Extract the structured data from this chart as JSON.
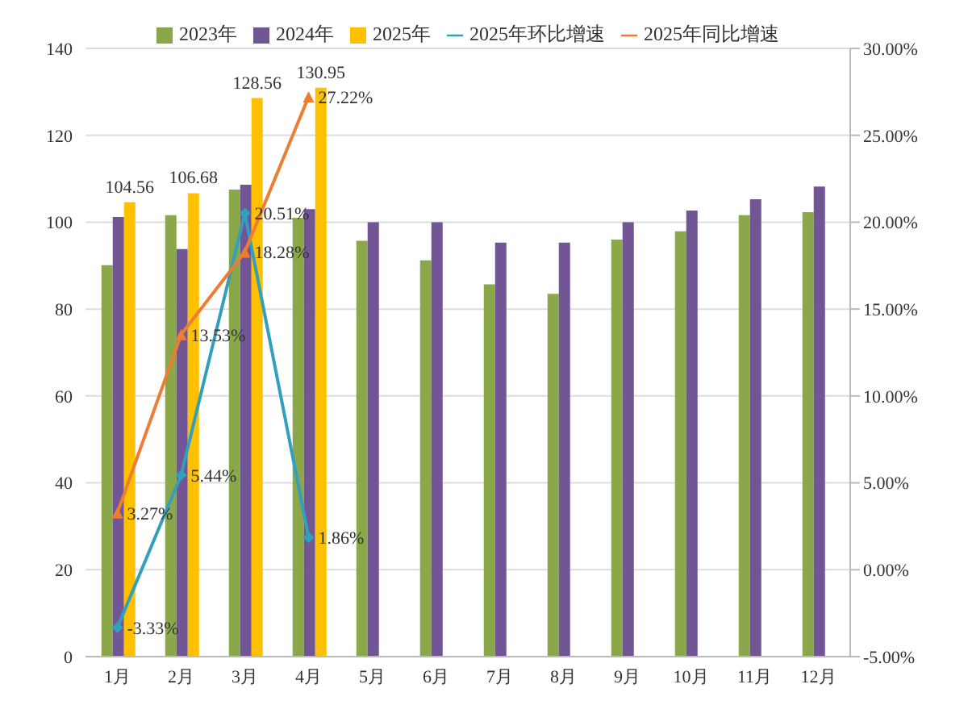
{
  "chart_data": {
    "type": "bar",
    "categories": [
      "1月",
      "2月",
      "3月",
      "4月",
      "5月",
      "6月",
      "7月",
      "8月",
      "9月",
      "10月",
      "11月",
      "12月"
    ],
    "series": [
      {
        "name": "2023年",
        "color": "#8aa84a",
        "values": [
          90.1,
          101.6,
          107.5,
          101,
          95.7,
          91.2,
          85.7,
          83.5,
          96,
          97.9,
          101.6,
          102.3
        ]
      },
      {
        "name": "2024年",
        "color": "#715594",
        "values": [
          101.2,
          93.8,
          108.6,
          103,
          100,
          100,
          95.3,
          95.3,
          100,
          102.7,
          105.3,
          108.2
        ]
      },
      {
        "name": "2025年",
        "color": "#ffc000",
        "values": [
          104.56,
          106.68,
          128.56,
          130.95,
          null,
          null,
          null,
          null,
          null,
          null,
          null,
          null
        ],
        "value_labels": [
          "104.56",
          "106.68",
          "128.56",
          "130.95",
          null,
          null,
          null,
          null,
          null,
          null,
          null,
          null
        ]
      },
      {
        "name": "2025年环比增速",
        "type": "line",
        "axis": "y2",
        "marker": "diamond",
        "color": "#32a0bc",
        "values": [
          -3.33,
          5.44,
          20.51,
          1.86,
          null,
          null,
          null,
          null,
          null,
          null,
          null,
          null
        ],
        "value_labels": [
          "-3.33%",
          "5.44%",
          "20.51%",
          "1.86%",
          null,
          null,
          null,
          null,
          null,
          null,
          null,
          null
        ]
      },
      {
        "name": "2025年同比增速",
        "type": "line",
        "axis": "y2",
        "marker": "triangle",
        "color": "#ed7d31",
        "values": [
          3.27,
          13.53,
          18.28,
          27.22,
          null,
          null,
          null,
          null,
          null,
          null,
          null,
          null
        ],
        "value_labels": [
          "3.27%",
          "13.53%",
          "18.28%",
          "27.22%",
          null,
          null,
          null,
          null,
          null,
          null,
          null,
          null
        ]
      }
    ],
    "ylim": [
      0,
      140
    ],
    "yticks": [
      0,
      20,
      40,
      60,
      80,
      100,
      120,
      140
    ],
    "y2lim": [
      -5,
      30
    ],
    "y2ticks": [
      {
        "value": -5,
        "label": "-5.00%"
      },
      {
        "value": 0,
        "label": "0.00%"
      },
      {
        "value": 5,
        "label": "5.00%"
      },
      {
        "value": 10,
        "label": "10.00%"
      },
      {
        "value": 15,
        "label": "15.00%"
      },
      {
        "value": 20,
        "label": "20.00%"
      },
      {
        "value": 25,
        "label": "25.00%"
      },
      {
        "value": 30,
        "label": "30.00%"
      }
    ],
    "grid": "y",
    "legend": "top"
  }
}
